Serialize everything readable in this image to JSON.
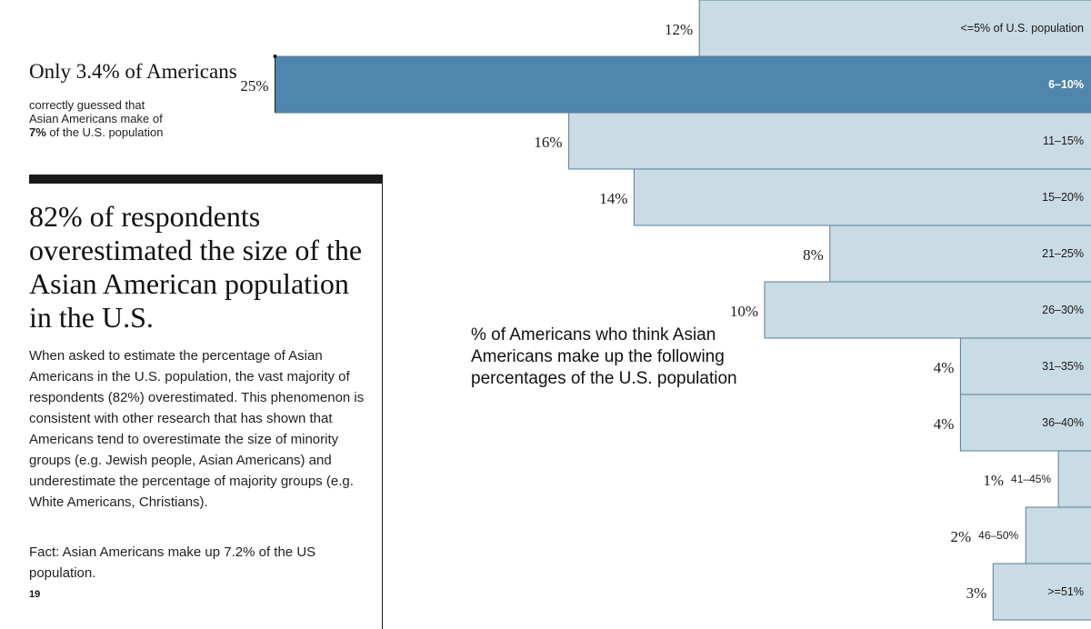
{
  "callout": {
    "heading": "Only 3.4% of Americans",
    "line1": "correctly guessed that",
    "line2": "Asian Americans make of",
    "line3_bold": "7%",
    "line3_rest": " of the U.S. population"
  },
  "panel": {
    "headline": "82% of respondents overestimated the size of the Asian American population in the U.S.",
    "body": "When asked to estimate the percentage of Asian Americans in the U.S. population, the vast majority of respondents (82%) overestimated. This phenomenon is consistent with other research that has shown that Americans tend to overestimate the size of minority groups (e.g. Jewish people, Asian Americans) and underestimate the percentage of majority groups (e.g. White Americans, Christians).",
    "fact": "Fact: Asian Americans make up 7.2% of the US population.",
    "page_number": "19"
  },
  "chart_description": "% of Americans who think Asian Americans make up the following percentages of the U.S. population",
  "colors": {
    "bar": "#c9dbe4",
    "bar_highlight": "#4f86ad",
    "bar_stroke": "#5b7d92",
    "text": "#1a1a1a",
    "highlight_text": "#ffffff"
  },
  "chart_data": {
    "type": "bar",
    "orientation": "horizontal",
    "title": "% of Americans who think Asian Americans make up the following percentages of the U.S. population",
    "categories": [
      "<=5% of U.S. population",
      "6–10%",
      "11–15%",
      "15–20%",
      "21–25%",
      "26–30%",
      "31–35%",
      "36–40%",
      "41–45%",
      "46–50%",
      ">=51%"
    ],
    "value_labels": [
      "12%",
      "25%",
      "16%",
      "14%",
      "8%",
      "10%",
      "4%",
      "4%",
      "1%",
      "2%",
      "3%"
    ],
    "values": [
      12,
      25,
      16,
      14,
      8,
      10,
      4,
      4,
      1,
      2,
      3
    ],
    "highlight_index": 1,
    "bar_anchor": "right",
    "grid": false,
    "legend": "none"
  }
}
